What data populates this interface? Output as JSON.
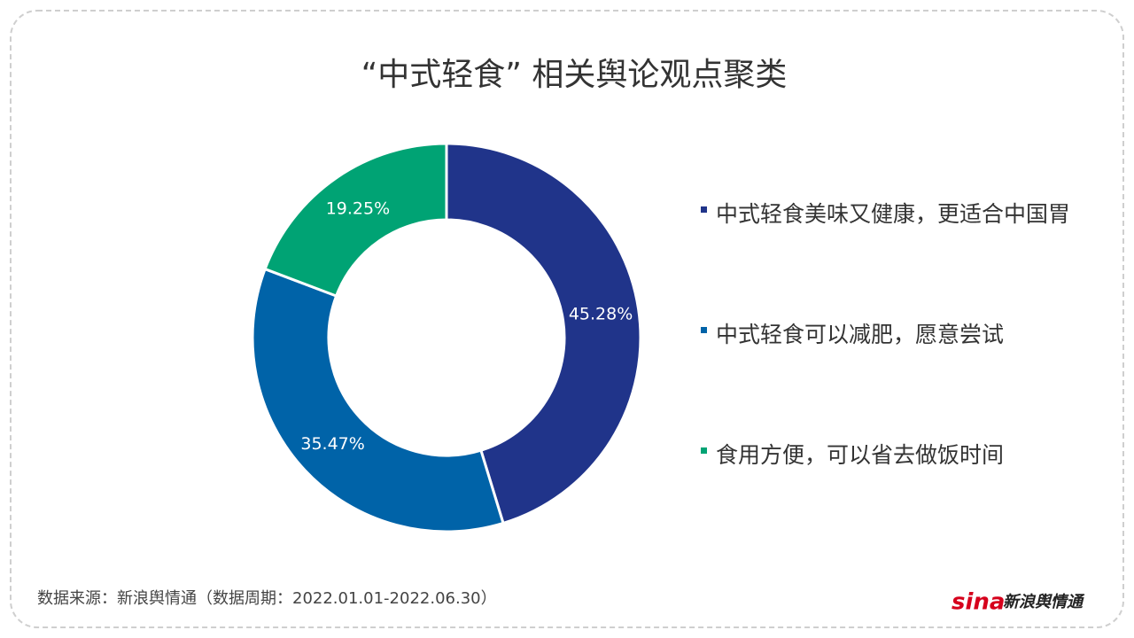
{
  "chart_data": {
    "type": "donut",
    "title": "“中式轻食” 相关舆论观点聚类",
    "categories": [
      "中式轻食美味又健康，更适合中国胃",
      "中式轻食可以减肥，愿意尝试",
      "食用方便，可以省去做饭时间"
    ],
    "values": [
      45.28,
      35.47,
      19.25
    ],
    "value_labels": [
      "45.28%",
      "35.47%",
      "19.25%"
    ],
    "colors": [
      "#20348a",
      "#0063a8",
      "#00a374"
    ],
    "source": "数据来源：新浪舆情通（数据周期：2022.01.01-2022.06.30）",
    "logo": {
      "brand": "sina",
      "name": "新浪舆情通"
    }
  }
}
